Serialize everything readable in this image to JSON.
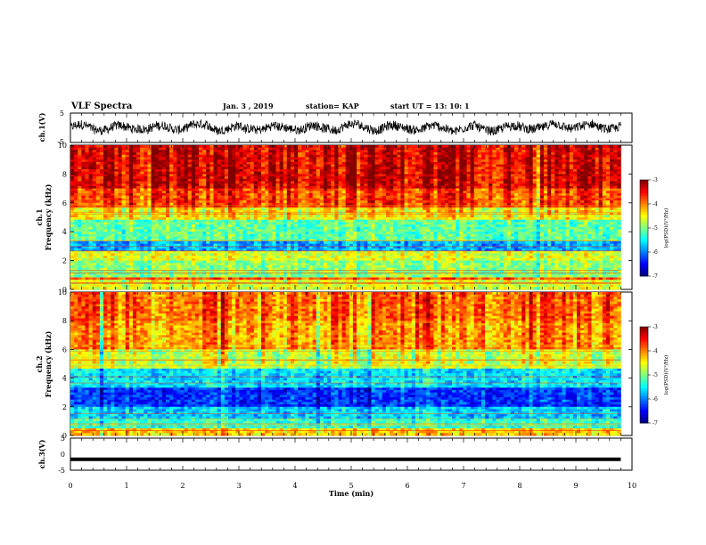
{
  "header": {
    "title": "VLF Spectra",
    "date": "Jan. 3 , 2019",
    "station": "station= KAP",
    "start": "start UT = 13: 10: 1"
  },
  "chart_data": [
    {
      "type": "line",
      "name": "ch1-waveform",
      "ylabel": "ch.1(V)",
      "ylim": [
        -5,
        5
      ],
      "yticks": [
        "5",
        "-5"
      ],
      "xlim": [
        0,
        10
      ],
      "note": "dense noisy waveform fluctuating roughly between -3 and 3 V around 0"
    },
    {
      "type": "heatmap",
      "name": "ch1-spectrogram",
      "ylabel": "ch.1\nFrequency (kHz)",
      "ylabel_line1": "ch.1",
      "ylabel_line2": "Frequency (kHz)",
      "ylim": [
        0,
        10
      ],
      "yticks": [
        "0",
        "2",
        "4",
        "6",
        "8",
        "10"
      ],
      "xlim": [
        0,
        9.8
      ],
      "colorbar": {
        "label": "log(PSD)(V²/Hz)",
        "range": [
          -7,
          -3
        ],
        "ticks": [
          "-3",
          "-4",
          "-5",
          "-6",
          "-7"
        ]
      },
      "bands": [
        {
          "fmin": 0.0,
          "fmax": 0.6,
          "logpsd": -4.6
        },
        {
          "fmin": 0.6,
          "fmax": 0.9,
          "logpsd": -3.8
        },
        {
          "fmin": 0.9,
          "fmax": 2.0,
          "logpsd": -4.9
        },
        {
          "fmin": 2.0,
          "fmax": 2.6,
          "logpsd": -4.6
        },
        {
          "fmin": 2.6,
          "fmax": 3.4,
          "logpsd": -5.8
        },
        {
          "fmin": 3.4,
          "fmax": 4.8,
          "logpsd": -5.1
        },
        {
          "fmin": 4.8,
          "fmax": 5.6,
          "logpsd": -4.4
        },
        {
          "fmin": 5.6,
          "fmax": 7.0,
          "logpsd": -3.7
        },
        {
          "fmin": 7.0,
          "fmax": 10.0,
          "logpsd": -3.3
        }
      ]
    },
    {
      "type": "heatmap",
      "name": "ch2-spectrogram",
      "ylabel_line1": "ch.2",
      "ylabel_line2": "Frequency (kHz)",
      "ylim": [
        0,
        10
      ],
      "yticks": [
        "0",
        "2",
        "4",
        "6",
        "8",
        "10"
      ],
      "xlim": [
        0,
        9.8
      ],
      "colorbar": {
        "label": "log(PSD)(V²/Hz)",
        "range": [
          -7,
          -3
        ],
        "ticks": [
          "-3",
          "-4",
          "-5",
          "-6",
          "-7"
        ]
      },
      "bands": [
        {
          "fmin": 0.0,
          "fmax": 0.5,
          "logpsd": -4.3
        },
        {
          "fmin": 0.5,
          "fmax": 1.2,
          "logpsd": -5.3
        },
        {
          "fmin": 1.2,
          "fmax": 2.0,
          "logpsd": -5.7
        },
        {
          "fmin": 2.0,
          "fmax": 3.4,
          "logpsd": -6.3
        },
        {
          "fmin": 3.4,
          "fmax": 4.6,
          "logpsd": -5.6
        },
        {
          "fmin": 4.6,
          "fmax": 6.0,
          "logpsd": -4.7
        },
        {
          "fmin": 6.0,
          "fmax": 8.0,
          "logpsd": -4.1
        },
        {
          "fmin": 8.0,
          "fmax": 10.0,
          "logpsd": -3.9
        }
      ]
    },
    {
      "type": "line",
      "name": "ch3-waveform",
      "ylabel": "ch.3(V)",
      "ylim": [
        -5,
        5
      ],
      "yticks": [
        "5",
        "0",
        "-5"
      ],
      "xlim": [
        0,
        10
      ],
      "xlabel": "Time (min)",
      "xticks": [
        "0",
        "1",
        "2",
        "3",
        "4",
        "5",
        "6",
        "7",
        "8",
        "9",
        "10"
      ],
      "constant_value": -1.6
    }
  ],
  "colors": {
    "axis": "#000000",
    "background": "#ffffff",
    "trace": "#000000"
  }
}
